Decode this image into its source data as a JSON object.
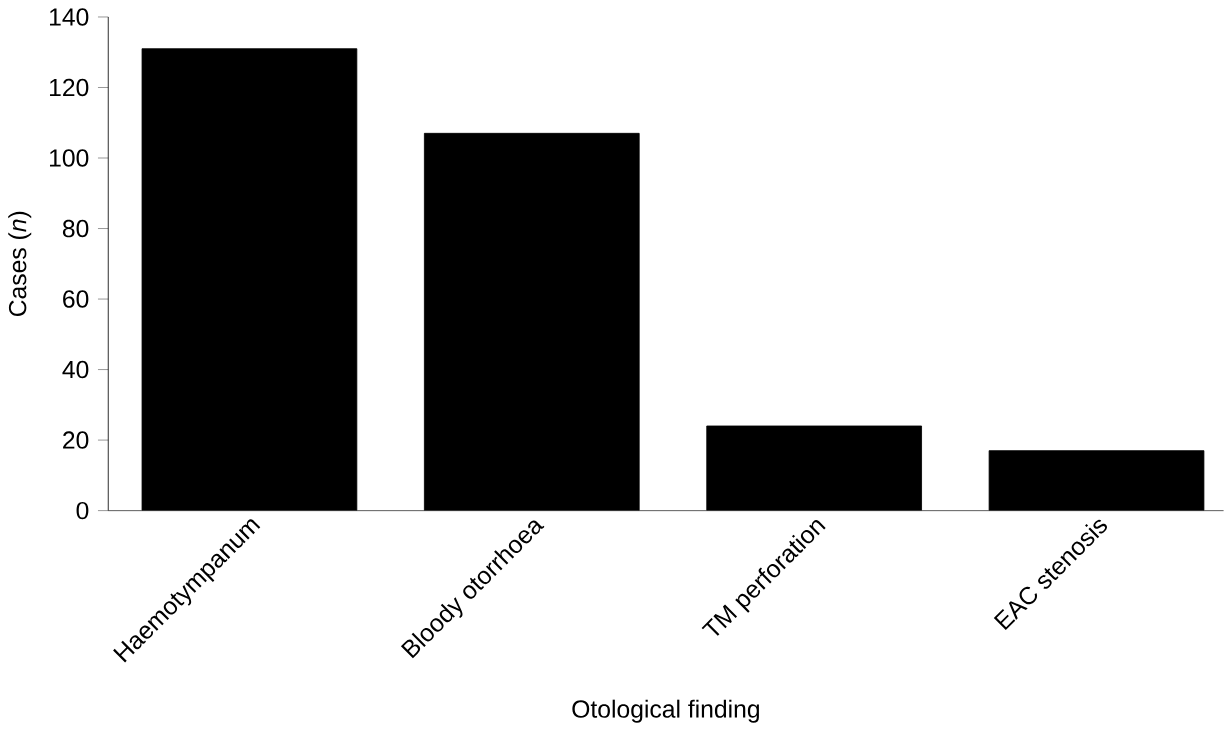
{
  "chart_data": {
    "type": "bar",
    "xlabel": "Otological finding",
    "ylabel": "Cases (*n*)",
    "categories": [
      "Haemotympanum",
      "Bloody otorrhoea",
      "TM perforation",
      "EAC stenosis"
    ],
    "values": [
      131,
      107,
      24,
      17
    ],
    "color": "#000000",
    "ylim": [
      0,
      140
    ],
    "yticks": [
      0,
      20,
      40,
      60,
      80,
      100,
      120,
      140
    ]
  }
}
